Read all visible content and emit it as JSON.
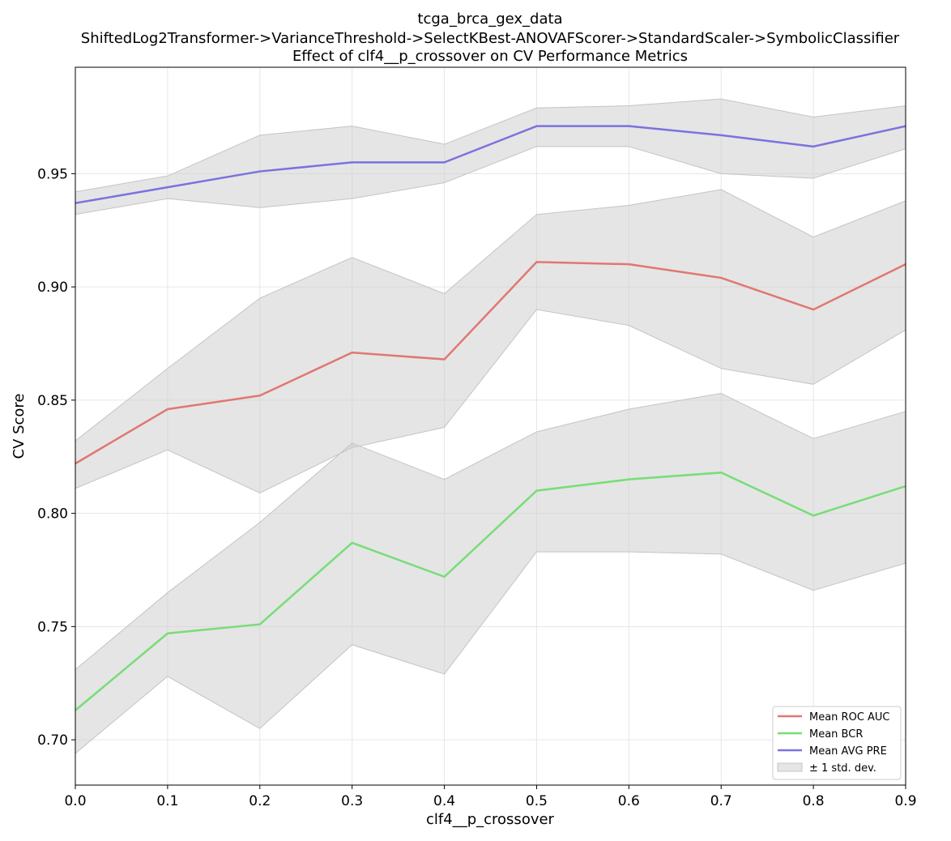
{
  "chart_data": {
    "type": "line",
    "title": [
      "tcga_brca_gex_data",
      "ShiftedLog2Transformer->VarianceThreshold->SelectKBest-ANOVAFScorer->StandardScaler->SymbolicClassifier",
      "Effect of clf4__p_crossover on CV Performance Metrics"
    ],
    "xlabel": "clf4__p_crossover",
    "ylabel": "CV Score",
    "xlim": [
      0.0,
      0.9
    ],
    "ylim": [
      0.68,
      0.997
    ],
    "x": [
      0.0,
      0.1,
      0.2,
      0.3,
      0.4,
      0.5,
      0.6,
      0.7,
      0.8,
      0.9
    ],
    "x_ticks": [
      "0.0",
      "0.1",
      "0.2",
      "0.3",
      "0.4",
      "0.5",
      "0.6",
      "0.7",
      "0.8",
      "0.9"
    ],
    "y_ticks": [
      "0.70",
      "0.75",
      "0.80",
      "0.85",
      "0.90",
      "0.95"
    ],
    "y_tick_values": [
      0.7,
      0.75,
      0.8,
      0.85,
      0.9,
      0.95
    ],
    "grid": true,
    "legend_position": "bottom-right",
    "band_color": "#cccccc",
    "series": [
      {
        "name": "Mean ROC AUC",
        "color": "#e07771",
        "values": [
          0.822,
          0.846,
          0.852,
          0.871,
          0.868,
          0.911,
          0.91,
          0.904,
          0.89,
          0.91
        ],
        "upper": [
          0.832,
          0.864,
          0.895,
          0.913,
          0.897,
          0.932,
          0.936,
          0.943,
          0.922,
          0.938
        ],
        "lower": [
          0.811,
          0.828,
          0.809,
          0.829,
          0.838,
          0.89,
          0.883,
          0.864,
          0.857,
          0.881
        ]
      },
      {
        "name": "Mean BCR",
        "color": "#77dd77",
        "values": [
          0.713,
          0.747,
          0.751,
          0.787,
          0.772,
          0.81,
          0.815,
          0.818,
          0.799,
          0.812
        ],
        "upper": [
          0.731,
          0.765,
          0.796,
          0.831,
          0.815,
          0.836,
          0.846,
          0.853,
          0.833,
          0.845
        ],
        "lower": [
          0.694,
          0.728,
          0.705,
          0.742,
          0.729,
          0.783,
          0.783,
          0.782,
          0.766,
          0.778
        ]
      },
      {
        "name": "Mean AVG PRE",
        "color": "#7b72dd",
        "values": [
          0.937,
          0.944,
          0.951,
          0.955,
          0.955,
          0.971,
          0.971,
          0.967,
          0.962,
          0.971
        ],
        "upper": [
          0.942,
          0.949,
          0.967,
          0.971,
          0.963,
          0.979,
          0.98,
          0.983,
          0.975,
          0.98
        ],
        "lower": [
          0.932,
          0.939,
          0.935,
          0.939,
          0.946,
          0.962,
          0.962,
          0.95,
          0.948,
          0.961
        ]
      }
    ],
    "legend": [
      "Mean ROC AUC",
      "Mean BCR",
      "Mean AVG PRE",
      "± 1 std. dev."
    ]
  }
}
